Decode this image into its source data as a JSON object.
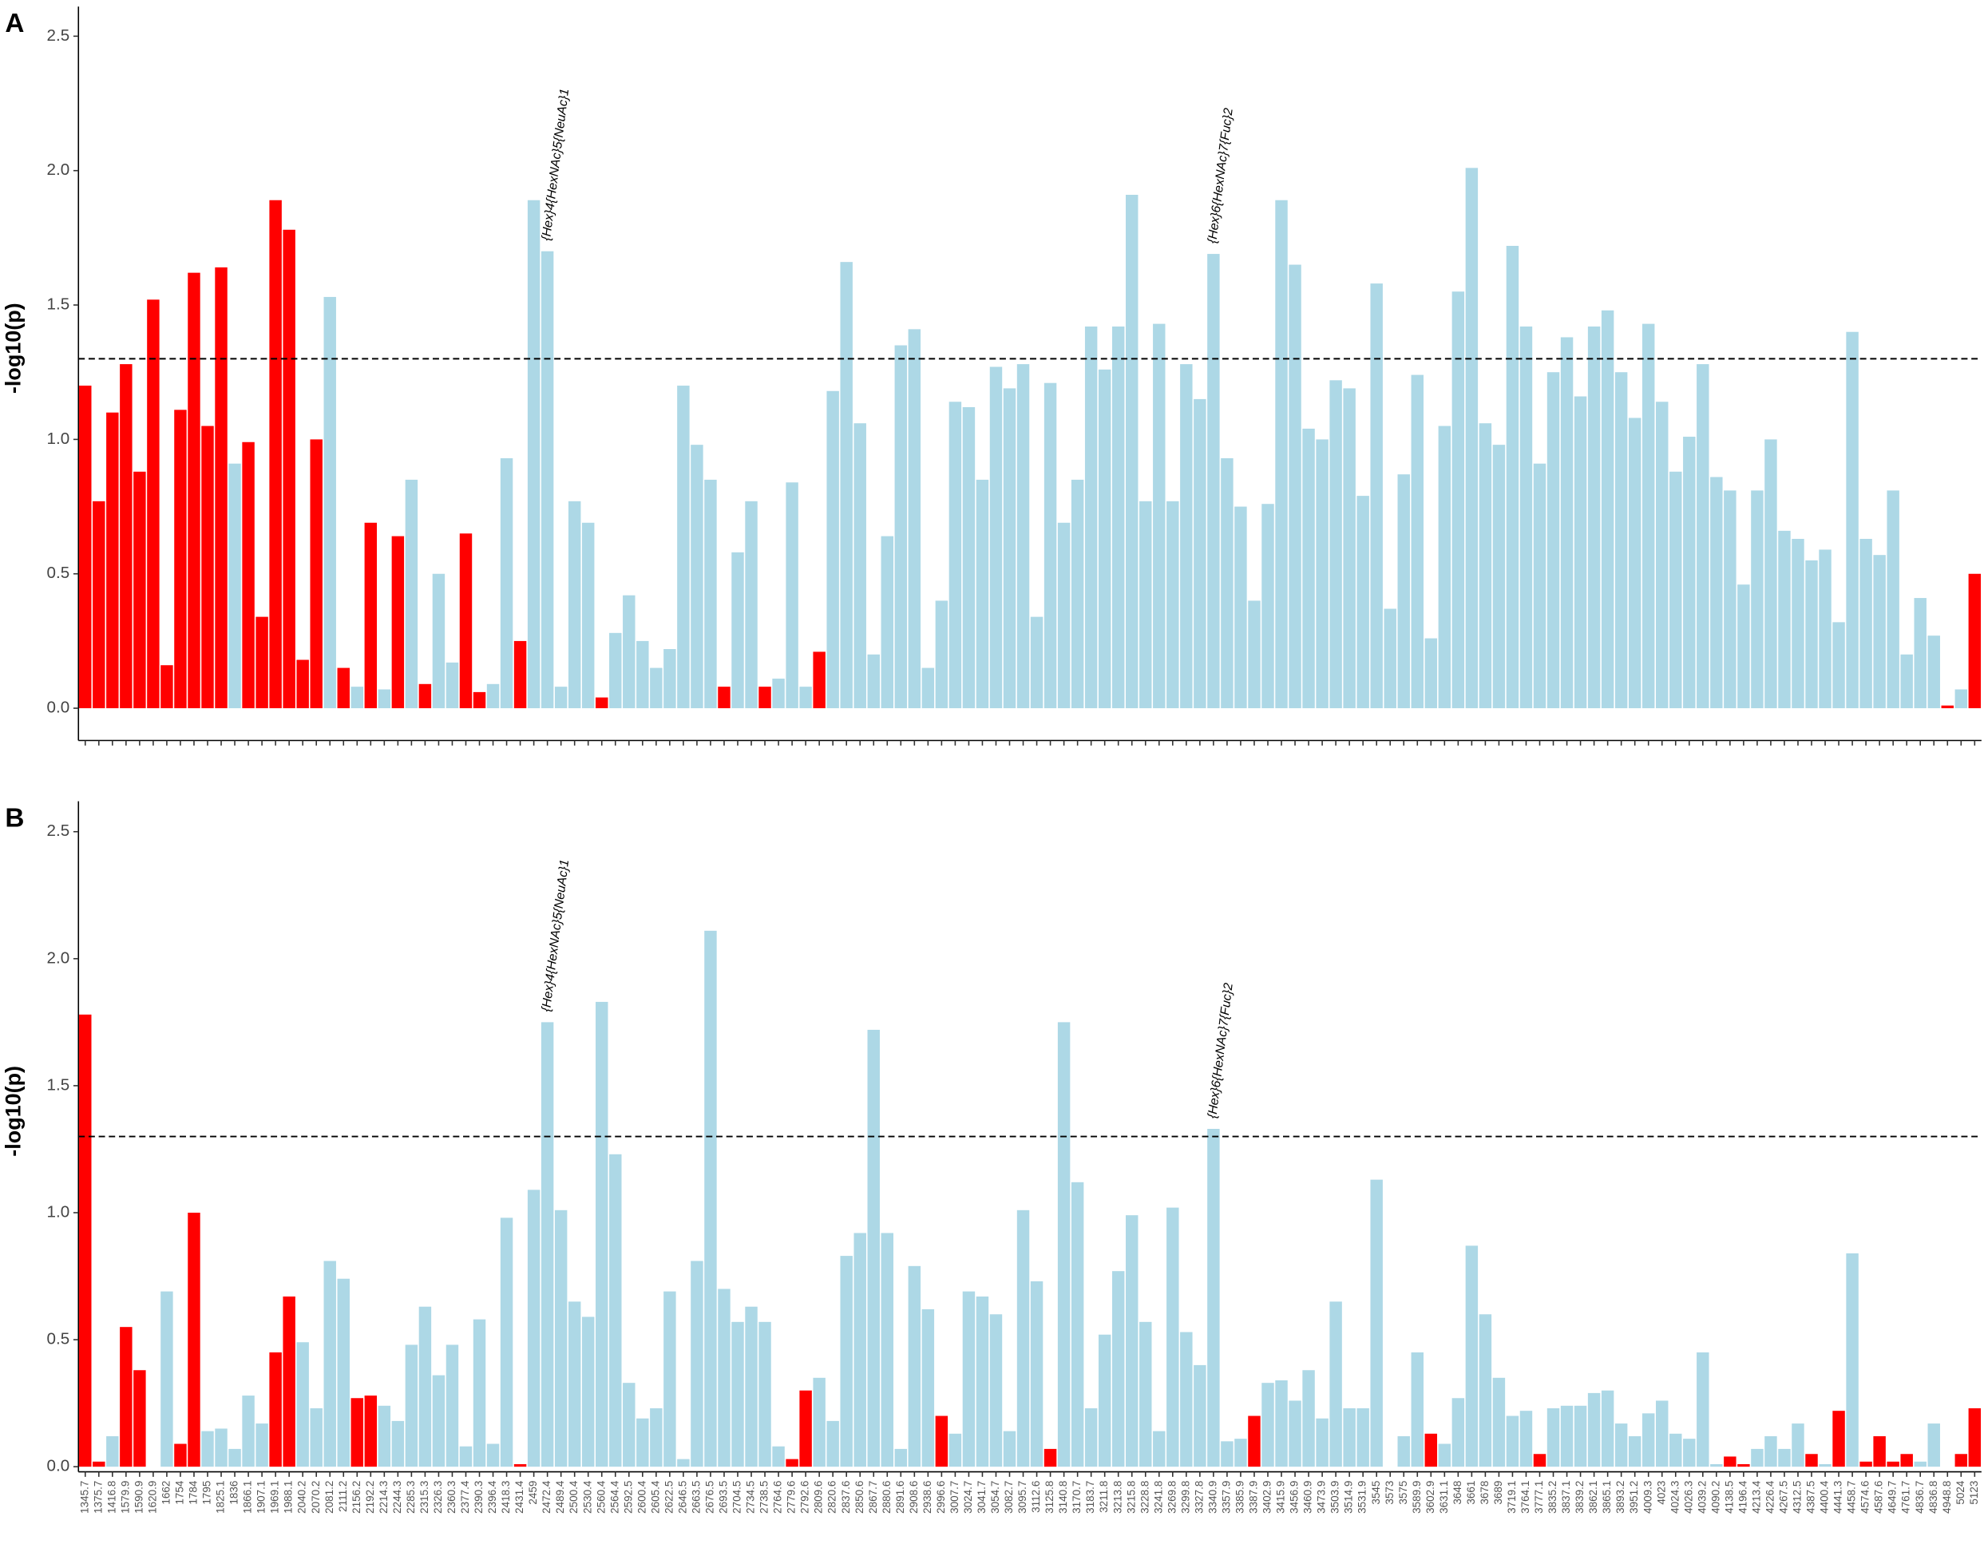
{
  "chart_data": [
    {
      "type": "bar",
      "panel_label": "A",
      "y_label": "-log10(p)",
      "ylim": [
        -0.12,
        2.61
      ],
      "yticks": [
        {
          "value": 0,
          "label": "0.0"
        },
        0.5,
        {
          "value": 1,
          "label": "1.0"
        },
        1.5,
        {
          "value": 2,
          "label": "2.0"
        },
        2.5
      ],
      "hline": 1.3,
      "values": [
        1.2,
        0.77,
        1.1,
        1.28,
        0.88,
        1.52,
        0.16,
        1.11,
        1.62,
        1.05,
        1.64,
        0.91,
        0.99,
        0.34,
        1.89,
        1.78,
        0.18,
        1.0,
        1.53,
        0.15,
        0.08,
        0.69,
        0.07,
        0.64,
        0.85,
        0.09,
        0.5,
        0.17,
        0.65,
        0.06,
        0.09,
        0.93,
        0.25,
        1.89,
        1.7,
        0.08,
        0.77,
        0.69,
        0.04,
        0.28,
        0.42,
        0.25,
        0.15,
        0.22,
        1.2,
        0.98,
        0.85,
        0.08,
        0.58,
        0.77,
        0.08,
        0.11,
        0.84,
        0.08,
        0.21,
        1.18,
        1.66,
        1.06,
        0.2,
        0.64,
        1.35,
        1.41,
        0.15,
        0.4,
        1.14,
        1.12,
        0.85,
        1.27,
        1.19,
        1.28,
        0.34,
        1.21,
        0.69,
        0.85,
        1.42,
        1.26,
        1.42,
        1.91,
        0.77,
        1.43,
        0.77,
        1.28,
        1.15,
        1.69,
        0.93,
        0.75,
        0.4,
        0.76,
        1.89,
        1.65,
        1.04,
        1.0,
        1.22,
        1.19,
        0.79,
        1.58,
        0.37,
        0.87,
        1.24,
        0.26,
        1.05,
        1.55,
        2.01,
        1.06,
        0.98,
        1.72,
        1.42,
        0.91,
        1.25,
        1.38,
        1.16,
        1.42,
        1.48,
        1.25,
        1.08,
        1.43,
        1.14,
        0.88,
        1.01,
        1.28,
        0.86,
        0.81,
        0.46,
        0.81,
        1.0,
        0.66,
        0.63,
        0.55,
        0.59,
        0.32,
        1.4,
        0.63,
        0.57,
        0.81,
        0.2,
        0.41,
        0.27,
        0.01,
        0.07,
        0.5
      ],
      "colors": [
        "red",
        "red",
        "red",
        "red",
        "red",
        "red",
        "red",
        "red",
        "red",
        "red",
        "red",
        "lightblue",
        "red",
        "red",
        "red",
        "red",
        "red",
        "red",
        "lightblue",
        "red",
        "lightblue",
        "red",
        "lightblue",
        "red",
        "lightblue",
        "red",
        "lightblue",
        "lightblue",
        "red",
        "red",
        "lightblue",
        "lightblue",
        "red",
        "lightblue",
        "lightblue",
        "lightblue",
        "lightblue",
        "lightblue",
        "red",
        "lightblue",
        "lightblue",
        "lightblue",
        "lightblue",
        "lightblue",
        "lightblue",
        "lightblue",
        "lightblue",
        "red",
        "lightblue",
        "lightblue",
        "red",
        "lightblue",
        "lightblue",
        "lightblue",
        "red",
        "lightblue",
        "lightblue",
        "lightblue",
        "lightblue",
        "lightblue",
        "lightblue",
        "lightblue",
        "lightblue",
        "lightblue",
        "lightblue",
        "lightblue",
        "lightblue",
        "lightblue",
        "lightblue",
        "lightblue",
        "lightblue",
        "lightblue",
        "lightblue",
        "lightblue",
        "lightblue",
        "lightblue",
        "lightblue",
        "lightblue",
        "lightblue",
        "lightblue",
        "lightblue",
        "lightblue",
        "lightblue",
        "lightblue",
        "lightblue",
        "lightblue",
        "lightblue",
        "lightblue",
        "lightblue",
        "lightblue",
        "lightblue",
        "lightblue",
        "lightblue",
        "lightblue",
        "lightblue",
        "lightblue",
        "lightblue",
        "lightblue",
        "lightblue",
        "lightblue",
        "lightblue",
        "lightblue",
        "lightblue",
        "lightblue",
        "lightblue",
        "lightblue",
        "lightblue",
        "lightblue",
        "lightblue",
        "lightblue",
        "lightblue",
        "lightblue",
        "lightblue",
        "lightblue",
        "lightblue",
        "lightblue",
        "lightblue",
        "lightblue",
        "lightblue",
        "lightblue",
        "lightblue",
        "lightblue",
        "lightblue",
        "lightblue",
        "lightblue",
        "lightblue",
        "lightblue",
        "lightblue",
        "lightblue",
        "lightblue",
        "lightblue",
        "lightblue",
        "lightblue",
        "lightblue",
        "lightblue",
        "lightblue",
        "lightblue",
        "red",
        "lightblue",
        "red"
      ],
      "annotations": [
        {
          "text": "{Hex}4{HexNAc}5{NeuAc}1",
          "category": "2472.4"
        },
        {
          "text": "{Hex}6{HexNAc}7{Fuc}2",
          "category": "3340.9"
        }
      ]
    },
    {
      "type": "bar",
      "panel_label": "B",
      "y_label": "-log10(p)",
      "ylim": [
        -0.02,
        2.62
      ],
      "yticks": [
        {
          "value": 0,
          "label": "0.0"
        },
        0.5,
        {
          "value": 1,
          "label": "1.0"
        },
        1.5,
        {
          "value": 2,
          "label": "2.0"
        },
        2.5
      ],
      "hline": 1.3,
      "categories": [
        "1345.7",
        "1375.7",
        "1416.8",
        "1579.9",
        "1590.9",
        "1620.9",
        "1662",
        "1754",
        "1784",
        "1795",
        "1825.1",
        "1836",
        "1866.1",
        "1907.1",
        "1969.1",
        "1988.1",
        "2040.2",
        "2070.2",
        "2081.2",
        "2111.2",
        "2156.2",
        "2192.2",
        "2214.3",
        "2244.3",
        "2285.3",
        "2315.3",
        "2326.3",
        "2360.3",
        "2377.4",
        "2390.3",
        "2396.4",
        "2418.3",
        "2431.4",
        "2459",
        "2472.4",
        "2489.4",
        "2500.4",
        "2530.4",
        "2560.4",
        "2564.4",
        "2592.5",
        "2600.4",
        "2605.4",
        "2622.5",
        "2646.5",
        "2663.5",
        "2676.5",
        "2693.5",
        "2704.5",
        "2734.5",
        "2738.5",
        "2764.6",
        "2779.6",
        "2792.6",
        "2809.6",
        "2820.6",
        "2837.6",
        "2850.6",
        "2867.7",
        "2880.6",
        "2891.6",
        "2908.6",
        "2938.6",
        "2996.6",
        "3007.7",
        "3024.7",
        "3041.7",
        "3054.7",
        "3082.7",
        "3095.7",
        "3112.6",
        "3125.8",
        "3140.8",
        "3170.7",
        "3183.7",
        "3211.8",
        "3213.8",
        "3215.8",
        "3228.8",
        "3241.8",
        "3269.8",
        "3299.8",
        "3327.8",
        "3340.9",
        "3357.9",
        "3385.9",
        "3387.9",
        "3402.9",
        "3415.9",
        "3456.9",
        "3460.9",
        "3473.9",
        "3503.9",
        "3514.9",
        "3531.9",
        "3545",
        "3573",
        "3575",
        "3589.9",
        "3602.9",
        "3631.1",
        "3648",
        "3661",
        "3678",
        "3689",
        "3719.1",
        "3764.1",
        "3777.1",
        "3835.2",
        "3837.1",
        "3839.2",
        "3862.1",
        "3865.1",
        "3893.2",
        "3951.2",
        "4009.3",
        "4023",
        "4024.3",
        "4026.3",
        "4039.2",
        "4090.2",
        "4138.5",
        "4196.4",
        "4213.4",
        "4226.4",
        "4267.5",
        "4312.5",
        "4387.5",
        "4400.4",
        "4441.3",
        "4458.7",
        "4574.6",
        "4587.6",
        "4649.7",
        "4761.7",
        "4836.7",
        "4836.8",
        "4948.8",
        "5024",
        "5123"
      ],
      "values": [
        1.78,
        0.02,
        0.12,
        0.55,
        0.38,
        0,
        0.69,
        0.09,
        1.0,
        0.14,
        0.15,
        0.07,
        0.28,
        0.17,
        0.45,
        0.67,
        0.49,
        0.23,
        0.81,
        0.74,
        0.27,
        0.28,
        0.24,
        0.18,
        0.48,
        0.63,
        0.36,
        0.48,
        0.08,
        0.58,
        0.09,
        0.98,
        0.01,
        1.09,
        1.75,
        1.01,
        0.65,
        0.59,
        1.83,
        1.23,
        0.33,
        0.19,
        0.23,
        0.69,
        0.03,
        0.81,
        2.11,
        0.7,
        0.57,
        0.63,
        0.57,
        0.08,
        0.03,
        0.3,
        0.35,
        0.18,
        0.83,
        0.92,
        1.72,
        0.92,
        0.07,
        0.79,
        0.62,
        0.2,
        0.13,
        0.69,
        0.67,
        0.6,
        0.14,
        1.01,
        0.73,
        0.07,
        1.75,
        1.12,
        0.23,
        0.52,
        0.77,
        0.99,
        0.57,
        0.14,
        1.02,
        0.53,
        0.4,
        1.33,
        0.1,
        0.11,
        0.2,
        0.33,
        0.34,
        0.26,
        0.38,
        0.19,
        0.65,
        0.23,
        0.23,
        1.13,
        0,
        0.12,
        0.45,
        0.13,
        0.09,
        0.27,
        0.87,
        0.6,
        0.35,
        0.2,
        0.22,
        0.05,
        0.23,
        0.24,
        0.24,
        0.29,
        0.3,
        0.17,
        0.12,
        0.21,
        0.26,
        0.13,
        0.11,
        0.45,
        0.01,
        0.04,
        0.01,
        0.07,
        0.12,
        0.07,
        0.17,
        0.05,
        0.01,
        0.22,
        0.84,
        0.02,
        0.12,
        0.02,
        0.05,
        0.02,
        0.17,
        0,
        0.05,
        0.23
      ],
      "colors": [
        "red",
        "red",
        "lightblue",
        "red",
        "red",
        "lightblue",
        "lightblue",
        "red",
        "red",
        "lightblue",
        "lightblue",
        "lightblue",
        "lightblue",
        "lightblue",
        "red",
        "red",
        "lightblue",
        "lightblue",
        "lightblue",
        "lightblue",
        "red",
        "red",
        "lightblue",
        "lightblue",
        "lightblue",
        "lightblue",
        "lightblue",
        "lightblue",
        "lightblue",
        "lightblue",
        "lightblue",
        "lightblue",
        "red",
        "lightblue",
        "lightblue",
        "lightblue",
        "lightblue",
        "lightblue",
        "lightblue",
        "lightblue",
        "lightblue",
        "lightblue",
        "lightblue",
        "lightblue",
        "lightblue",
        "lightblue",
        "lightblue",
        "lightblue",
        "lightblue",
        "lightblue",
        "lightblue",
        "lightblue",
        "red",
        "red",
        "lightblue",
        "lightblue",
        "lightblue",
        "lightblue",
        "lightblue",
        "lightblue",
        "lightblue",
        "lightblue",
        "lightblue",
        "red",
        "lightblue",
        "lightblue",
        "lightblue",
        "lightblue",
        "lightblue",
        "lightblue",
        "lightblue",
        "red",
        "lightblue",
        "lightblue",
        "lightblue",
        "lightblue",
        "lightblue",
        "lightblue",
        "lightblue",
        "lightblue",
        "lightblue",
        "lightblue",
        "lightblue",
        "lightblue",
        "lightblue",
        "lightblue",
        "red",
        "lightblue",
        "lightblue",
        "lightblue",
        "lightblue",
        "lightblue",
        "lightblue",
        "lightblue",
        "lightblue",
        "lightblue",
        "lightblue",
        "lightblue",
        "lightblue",
        "red",
        "lightblue",
        "lightblue",
        "lightblue",
        "lightblue",
        "lightblue",
        "lightblue",
        "lightblue",
        "red",
        "lightblue",
        "lightblue",
        "lightblue",
        "lightblue",
        "lightblue",
        "lightblue",
        "lightblue",
        "lightblue",
        "lightblue",
        "lightblue",
        "lightblue",
        "lightblue",
        "lightblue",
        "red",
        "red",
        "lightblue",
        "lightblue",
        "lightblue",
        "lightblue",
        "red",
        "lightblue",
        "red",
        "lightblue",
        "red",
        "red",
        "red",
        "red",
        "lightblue",
        "lightblue",
        "lightblue",
        "red",
        "red"
      ],
      "annotations": [
        {
          "text": "{Hex}4{HexNAc}5{NeuAc}1",
          "category": "2472.4"
        },
        {
          "text": "{Hex}6{HexNAc}7{Fuc}2",
          "category": "3340.9"
        }
      ]
    }
  ]
}
